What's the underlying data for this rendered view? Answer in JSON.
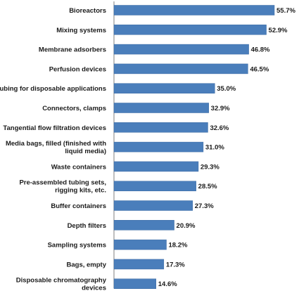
{
  "chart_data": {
    "type": "bar",
    "orientation": "horizontal",
    "categories": [
      [
        "Bioreactors"
      ],
      [
        "Mixing systems"
      ],
      [
        "Membrane adsorbers"
      ],
      [
        "Perfusion devices"
      ],
      [
        "Tubing for disposable applications"
      ],
      [
        "Connectors, clamps"
      ],
      [
        "Tangential flow filtration devices"
      ],
      [
        "Media bags, filled (finished with",
        "liquid media)"
      ],
      [
        "Waste containers"
      ],
      [
        "Pre-assembled tubing sets,",
        "rigging kits, etc."
      ],
      [
        "Buffer containers"
      ],
      [
        "Depth filters"
      ],
      [
        "Sampling systems"
      ],
      [
        "Bags, empty"
      ],
      [
        "Disposable chromatography",
        "devices"
      ]
    ],
    "values": [
      55.7,
      52.9,
      46.8,
      46.5,
      35.0,
      32.9,
      32.6,
      31.0,
      29.3,
      28.5,
      27.3,
      20.9,
      18.2,
      17.3,
      14.6
    ],
    "value_labels": [
      "55.7%",
      "52.9%",
      "46.8%",
      "46.5%",
      "35.0%",
      "32.9%",
      "32.6%",
      "31.0%",
      "29.3%",
      "28.5%",
      "27.3%",
      "20.9%",
      "18.2%",
      "17.3%",
      "14.6%"
    ],
    "xlim": [
      0,
      60
    ],
    "grid": false,
    "bar_color": "#4a7ebb"
  }
}
